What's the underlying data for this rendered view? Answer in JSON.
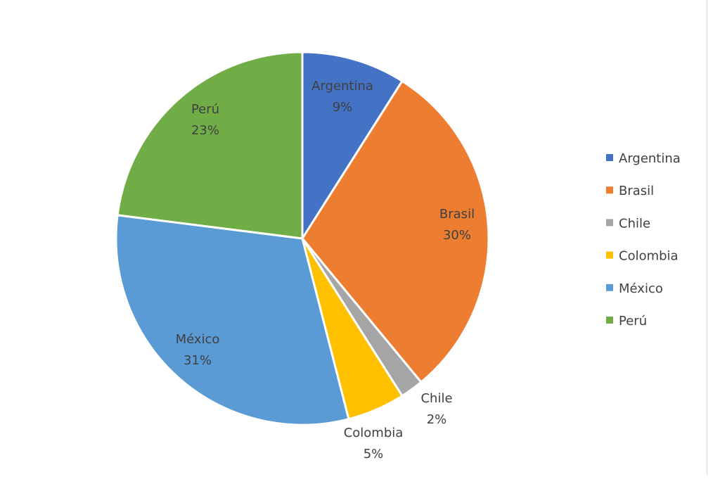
{
  "chart_data": {
    "type": "pie",
    "categories": [
      "Argentina",
      "Brasil",
      "Chile",
      "Colombia",
      "México",
      "Perú"
    ],
    "values": [
      9,
      30,
      2,
      5,
      31,
      23
    ],
    "data_labels": [
      "9%",
      "30%",
      "2%",
      "5%",
      "31%",
      "23%"
    ],
    "colors": [
      "#4472C4",
      "#ED7D31",
      "#A5A5A5",
      "#FFC000",
      "#5B9BD5",
      "#70AD47"
    ],
    "legend": "right",
    "title": ""
  }
}
